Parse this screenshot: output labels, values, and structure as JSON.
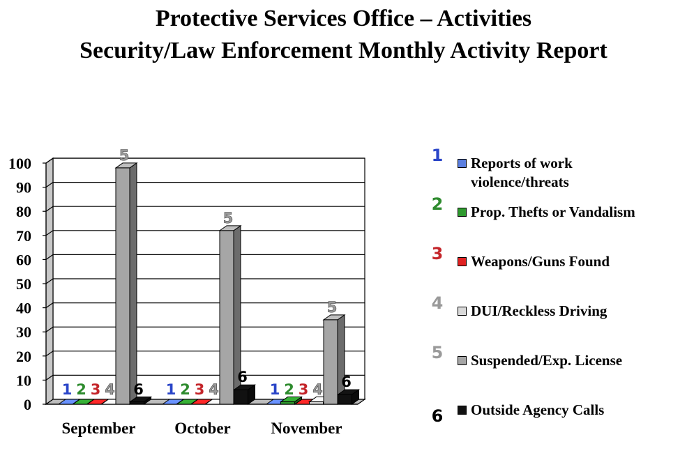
{
  "chart_data": {
    "type": "bar",
    "title": "Protective Services Office – Activities",
    "subtitle": "Security/Law Enforcement Monthly Activity Report",
    "xlabel": "",
    "ylabel": "",
    "ylim": [
      0,
      100
    ],
    "yticks": [
      "0",
      "10",
      "20",
      "30",
      "40",
      "50",
      "60",
      "70",
      "80",
      "90",
      "100"
    ],
    "grid": true,
    "legend_position": "right",
    "categories": [
      "September",
      "October",
      "November"
    ],
    "series": [
      {
        "name": "Reports of work violence/threats",
        "marker": "1",
        "color": "#5b7fe0",
        "label_color": "#2a45c8",
        "values": [
          0,
          0,
          0
        ]
      },
      {
        "name": "Prop. Thefts or Vandalism",
        "marker": "2",
        "color": "#2f9a2f",
        "label_color": "#2e8b2e",
        "values": [
          0,
          0,
          1
        ]
      },
      {
        "name": "Weapons/Guns Found",
        "marker": "3",
        "color": "#e02222",
        "label_color": "#c4252a",
        "values": [
          0,
          0,
          0
        ]
      },
      {
        "name": "DUI/Reckless Driving",
        "marker": "4",
        "color": "#d9d9d9",
        "label_color": "#9a9a9a",
        "values": [
          0,
          0,
          1
        ]
      },
      {
        "name": "Suspended/Exp. License",
        "marker": "5",
        "color": "#a6a6a6",
        "label_color": "#9a9a9a",
        "values": [
          98,
          72,
          35
        ]
      },
      {
        "name": "Outside Agency Calls",
        "marker": "6",
        "color": "#111111",
        "label_color": "#000000",
        "values": [
          1,
          6,
          4
        ]
      }
    ]
  }
}
